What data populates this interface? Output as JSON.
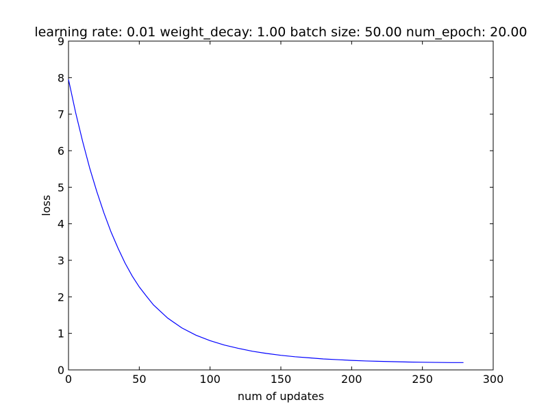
{
  "chart_data": {
    "type": "line",
    "title": "learning rate: 0.01 weight_decay: 1.00 batch size: 50.00 num_epoch: 20.00",
    "xlabel": "num of updates",
    "ylabel": "loss",
    "xlim": [
      0,
      300
    ],
    "ylim": [
      0,
      9
    ],
    "xticks": [
      0,
      50,
      100,
      150,
      200,
      250,
      300
    ],
    "yticks": [
      0,
      1,
      2,
      3,
      4,
      5,
      6,
      7,
      8,
      9
    ],
    "grid": false,
    "series": [
      {
        "color": "#0000ff",
        "x": [
          0,
          5,
          10,
          15,
          20,
          25,
          30,
          35,
          40,
          45,
          50,
          55,
          60,
          70,
          80,
          90,
          100,
          110,
          120,
          130,
          140,
          150,
          160,
          170,
          180,
          190,
          200,
          210,
          220,
          230,
          240,
          250,
          260,
          270,
          279
        ],
        "y": [
          7.95,
          7.05,
          6.25,
          5.52,
          4.88,
          4.3,
          3.78,
          3.33,
          2.92,
          2.57,
          2.27,
          2.02,
          1.78,
          1.42,
          1.15,
          0.95,
          0.8,
          0.68,
          0.59,
          0.51,
          0.45,
          0.4,
          0.36,
          0.33,
          0.3,
          0.28,
          0.26,
          0.245,
          0.235,
          0.225,
          0.215,
          0.21,
          0.205,
          0.2,
          0.2
        ]
      }
    ]
  }
}
